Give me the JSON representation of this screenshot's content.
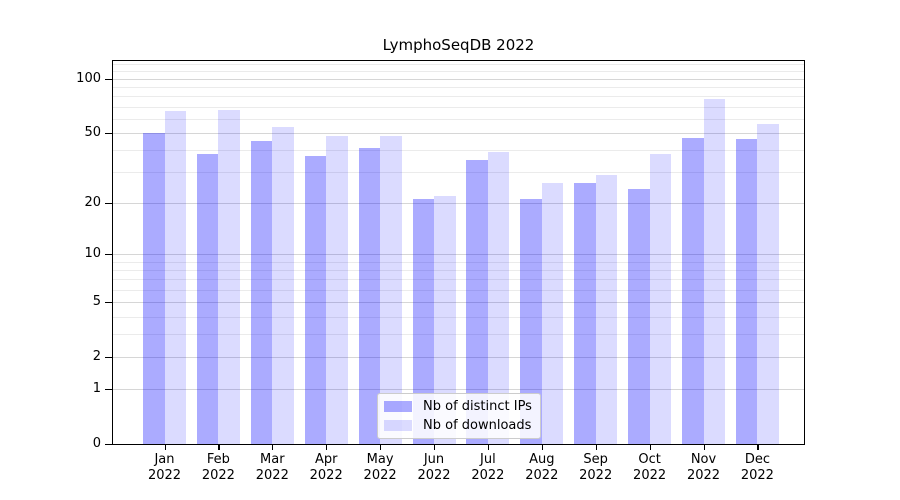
{
  "chart_data": {
    "type": "bar",
    "title": "LymphoSeqDB 2022",
    "categories": [
      "Jan",
      "Feb",
      "Mar",
      "Apr",
      "May",
      "Jun",
      "Jul",
      "Aug",
      "Sep",
      "Oct",
      "Nov",
      "Dec"
    ],
    "year_label": "2022",
    "series": [
      {
        "name": "Nb of distinct IPs",
        "color": "#0000ff",
        "alpha": 0.33,
        "values": [
          50,
          38,
          45,
          37,
          41,
          21,
          35,
          21,
          26,
          24,
          47,
          46
        ]
      },
      {
        "name": "Nb of downloads",
        "color": "#0000ff",
        "alpha": 0.14,
        "values": [
          66,
          67,
          54,
          48,
          48,
          22,
          39,
          26,
          29,
          38,
          77,
          56
        ]
      }
    ],
    "yscale": "log1p",
    "ylim": [
      0,
      127
    ],
    "yticks": [
      0,
      1,
      2,
      5,
      10,
      20,
      50,
      100
    ],
    "minor_yticks": [
      3,
      4,
      6,
      7,
      8,
      9,
      30,
      40,
      60,
      70,
      80,
      90,
      110,
      120
    ],
    "grid": true,
    "legend_position": "lower center",
    "xlabel": "",
    "ylabel": ""
  },
  "colors": {
    "background": "#ffffff",
    "spine": "#000000",
    "major_grid": "#d6d6d6",
    "minor_grid": "#ebebeb",
    "bar_ips_rendered": "#aaaaf7",
    "bar_downloads_rendered": "#dcdcfa",
    "text": "#000000"
  }
}
